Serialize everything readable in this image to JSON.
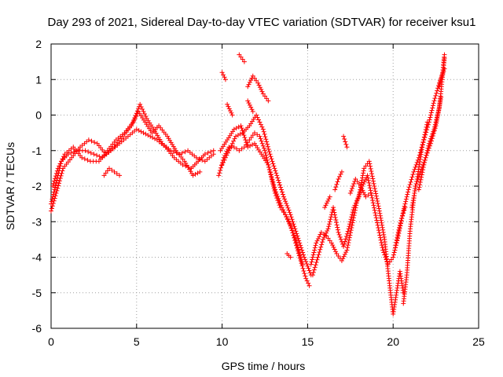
{
  "chart_data": {
    "type": "scatter",
    "title": "Day 293 of 2021, Sidereal Day-to-day VTEC variation (SDTVAR) for receiver ksu1",
    "xlabel": "GPS time / hours",
    "ylabel": "SDTVAR / TECUs",
    "xlim": [
      0,
      25
    ],
    "ylim": [
      -6,
      2
    ],
    "xticks": [
      "0",
      "5",
      "10",
      "15",
      "20",
      "25"
    ],
    "yticks": [
      "2",
      "1",
      "0",
      "-1",
      "-2",
      "-3",
      "-4",
      "-5",
      "-6"
    ],
    "grid": true,
    "legend": "none",
    "marker": "+",
    "color": "#ff0000",
    "series": [
      {
        "x": [
          0,
          0.3,
          0.6,
          1.0,
          1.5,
          2.0,
          2.5,
          3.0,
          3.5,
          4.0,
          4.5,
          5.0,
          5.4,
          5.8,
          6.2,
          6.7,
          7.2,
          7.7,
          8.2,
          8.6,
          9.0,
          9.5
        ],
        "y": [
          -2.5,
          -1.9,
          -1.3,
          -1.1,
          -1.0,
          -1.0,
          -1.1,
          -1.2,
          -1.0,
          -0.8,
          -0.6,
          -0.4,
          -0.5,
          -0.6,
          -0.7,
          -0.9,
          -1.2,
          -1.4,
          -1.5,
          -1.3,
          -1.1,
          -1.0
        ]
      },
      {
        "x": [
          0,
          0.3,
          0.7,
          1.2,
          1.7,
          2.2,
          2.7,
          3.2,
          3.7,
          4.2,
          4.7,
          5.1,
          5.5,
          5.9,
          6.3,
          6.8,
          7.3,
          7.8,
          8.3,
          8.7
        ],
        "y": [
          -2.7,
          -2.2,
          -1.5,
          -1.2,
          -0.9,
          -0.7,
          -0.8,
          -1.1,
          -0.9,
          -0.6,
          -0.3,
          0.1,
          -0.2,
          -0.5,
          -0.3,
          -0.6,
          -1.0,
          -1.3,
          -1.7,
          -1.6
        ]
      },
      {
        "x": [
          0.1,
          0.4,
          0.8,
          1.3,
          1.8,
          2.3,
          2.8,
          3.3,
          3.8,
          4.3,
          4.8,
          5.2,
          5.6,
          6.0,
          6.5,
          7.0,
          7.5,
          8.0,
          8.5,
          9.0,
          9.5
        ],
        "y": [
          -2.0,
          -1.5,
          -1.1,
          -0.9,
          -1.2,
          -1.3,
          -1.3,
          -1.0,
          -0.7,
          -0.5,
          -0.2,
          0.3,
          -0.1,
          -0.4,
          -0.8,
          -1.0,
          -1.1,
          -1.0,
          -1.2,
          -1.3,
          -1.1
        ]
      },
      {
        "x": [
          3.1,
          3.4,
          3.7,
          4.0
        ],
        "y": [
          -1.7,
          -1.5,
          -1.6,
          -1.7
        ]
      },
      {
        "x": [
          9.8,
          10.1,
          10.4,
          10.7,
          11.0,
          11.3,
          11.6,
          11.9,
          12.2,
          12.5,
          12.8,
          13.1,
          13.4,
          13.7,
          14.0,
          14.3,
          14.6,
          14.9,
          15.1
        ],
        "y": [
          -1.7,
          -1.2,
          -0.9,
          -0.9,
          -1.0,
          -0.9,
          -0.7,
          -0.5,
          -0.6,
          -1.0,
          -1.6,
          -2.2,
          -2.6,
          -2.8,
          -3.1,
          -3.6,
          -4.1,
          -4.6,
          -4.8
        ]
      },
      {
        "x": [
          10.0,
          10.4,
          10.8,
          11.2,
          11.6,
          12.0,
          12.4,
          12.8,
          13.2,
          13.6,
          14.0,
          14.4,
          14.8,
          15.2
        ],
        "y": [
          -1.4,
          -1.0,
          -0.6,
          -0.5,
          -0.3,
          0.0,
          -0.4,
          -1.1,
          -1.7,
          -2.3,
          -2.8,
          -3.4,
          -4.0,
          -4.5
        ]
      },
      {
        "x": [
          9.9,
          10.3,
          10.7,
          11.1,
          11.5,
          11.9,
          12.3,
          12.7,
          13.1,
          13.5,
          13.9,
          14.3,
          14.7
        ],
        "y": [
          -1.0,
          -0.7,
          -0.4,
          -0.3,
          -0.9,
          -0.8,
          -1.1,
          -1.4,
          -2.1,
          -2.6,
          -3.0,
          -3.5,
          -4.2
        ]
      },
      {
        "x": [
          10.0,
          10.2
        ],
        "y": [
          1.2,
          1.0
        ]
      },
      {
        "x": [
          11.0,
          11.3
        ],
        "y": [
          1.7,
          1.5
        ]
      },
      {
        "x": [
          11.5,
          11.8,
          12.1,
          12.4,
          12.7
        ],
        "y": [
          0.8,
          1.1,
          0.9,
          0.6,
          0.4
        ]
      },
      {
        "x": [
          11.5,
          11.8
        ],
        "y": [
          0.4,
          0.1
        ]
      },
      {
        "x": [
          10.3,
          10.6
        ],
        "y": [
          0.3,
          0.0
        ]
      },
      {
        "x": [
          13.8,
          14.0
        ],
        "y": [
          -3.9,
          -4.0
        ]
      },
      {
        "x": [
          15.2,
          15.5,
          15.8,
          16.1,
          16.4,
          16.7,
          17.0,
          17.3,
          17.6,
          17.9,
          18.2,
          18.5,
          18.8,
          19.1,
          19.4,
          19.7,
          20.0,
          20.3,
          20.6,
          20.9,
          21.2,
          21.5,
          21.8,
          22.1,
          22.4,
          22.7,
          23.0
        ],
        "y": [
          -4.2,
          -3.6,
          -3.3,
          -3.4,
          -3.6,
          -3.9,
          -4.1,
          -3.8,
          -3.1,
          -2.4,
          -2.0,
          -1.7,
          -2.4,
          -3.1,
          -3.8,
          -4.2,
          -4.0,
          -3.4,
          -2.7,
          -2.1,
          -1.6,
          -1.2,
          -0.7,
          -0.2,
          0.4,
          0.9,
          1.3
        ]
      },
      {
        "x": [
          15.3,
          15.6,
          15.9,
          16.2,
          16.5,
          16.8,
          17.1,
          17.4,
          17.7,
          18.0,
          18.3,
          18.6,
          18.9,
          19.2,
          19.5,
          19.8,
          20.0,
          20.2,
          20.4,
          20.6
        ],
        "y": [
          -4.5,
          -4.0,
          -3.5,
          -3.2,
          -2.6,
          -3.3,
          -3.7,
          -3.2,
          -2.6,
          -2.3,
          -1.5,
          -1.3,
          -2.0,
          -2.7,
          -3.5,
          -4.8,
          -5.6,
          -5.0,
          -4.4,
          -5.0
        ]
      },
      {
        "x": [
          17.5,
          17.8,
          18.1,
          18.4,
          18.7
        ],
        "y": [
          -2.2,
          -1.8,
          -2.0,
          -2.3,
          -2.2
        ]
      },
      {
        "x": [
          16.0,
          16.3
        ],
        "y": [
          -2.6,
          -2.3
        ]
      },
      {
        "x": [
          16.6,
          16.8,
          17.0
        ],
        "y": [
          -2.1,
          -1.8,
          -1.6
        ]
      },
      {
        "x": [
          17.1,
          17.3
        ],
        "y": [
          -0.6,
          -0.9
        ]
      },
      {
        "x": [
          20.6,
          20.8,
          21.0,
          21.3,
          21.6,
          21.9,
          22.2,
          22.5,
          22.8
        ],
        "y": [
          -5.3,
          -4.5,
          -3.2,
          -2.0,
          -1.6,
          -1.2,
          -0.8,
          -0.3,
          0.5
        ]
      },
      {
        "x": [
          20.1,
          20.3,
          20.5,
          20.7
        ],
        "y": [
          -3.8,
          -3.3,
          -2.9,
          -2.6
        ]
      },
      {
        "x": [
          21.5,
          21.8,
          22.1,
          22.4,
          22.7,
          23.0
        ],
        "y": [
          -2.1,
          -1.4,
          -0.8,
          -0.4,
          0.2,
          1.6
        ]
      },
      {
        "x": [
          22.7,
          22.9,
          23.0
        ],
        "y": [
          0.8,
          1.2,
          1.7
        ]
      },
      {
        "x": [
          21.1,
          21.4,
          21.7,
          22.0
        ],
        "y": [
          -2.6,
          -1.8,
          -0.9,
          -0.2
        ]
      }
    ]
  }
}
